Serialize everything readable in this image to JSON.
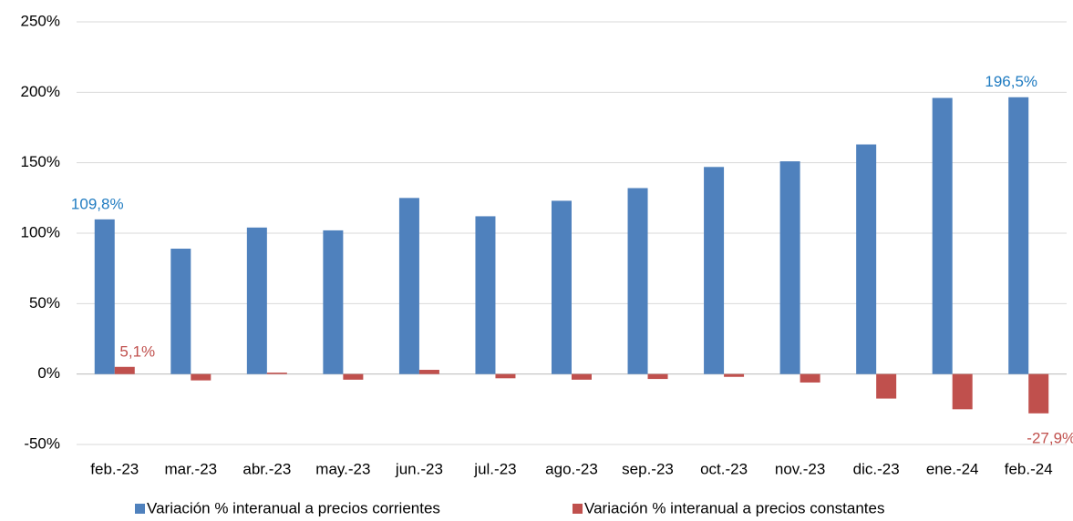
{
  "chart_data": {
    "type": "bar",
    "categories": [
      "feb.-23",
      "mar.-23",
      "abr.-23",
      "may.-23",
      "jun.-23",
      "jul.-23",
      "ago.-23",
      "sep.-23",
      "oct.-23",
      "nov.-23",
      "dic.-23",
      "ene.-24",
      "feb.-24"
    ],
    "series": [
      {
        "name": "Variación % interanual a precios corrientes",
        "color": "#4f81bd",
        "label_color": "#1f7bc1",
        "values": [
          109.8,
          89,
          104,
          102,
          125,
          112,
          123,
          132,
          147,
          151,
          163,
          196,
          196.5
        ],
        "value_labels": [
          "109,8%",
          null,
          null,
          null,
          null,
          null,
          null,
          null,
          null,
          null,
          null,
          null,
          "196,5%"
        ]
      },
      {
        "name": "Variación % interanual a precios constantes",
        "color": "#c0504d",
        "label_color": "#c0504d",
        "values": [
          5.1,
          -4.5,
          1,
          -4,
          3,
          -3,
          -4,
          -3.5,
          -2,
          -6,
          -17.4,
          -25,
          -27.9
        ],
        "value_labels": [
          "5,1%",
          null,
          null,
          null,
          null,
          null,
          null,
          null,
          null,
          null,
          null,
          null,
          "-27,9%"
        ]
      }
    ],
    "ylim": [
      -50,
      250
    ],
    "yticks": [
      {
        "value": -50,
        "label": "-50%"
      },
      {
        "value": 0,
        "label": "0%"
      },
      {
        "value": 50,
        "label": "50%"
      },
      {
        "value": 100,
        "label": "100%"
      },
      {
        "value": 150,
        "label": "150%"
      },
      {
        "value": 200,
        "label": "200%"
      },
      {
        "value": 250,
        "label": "250%"
      }
    ],
    "grid": true,
    "legend": "bottom"
  }
}
